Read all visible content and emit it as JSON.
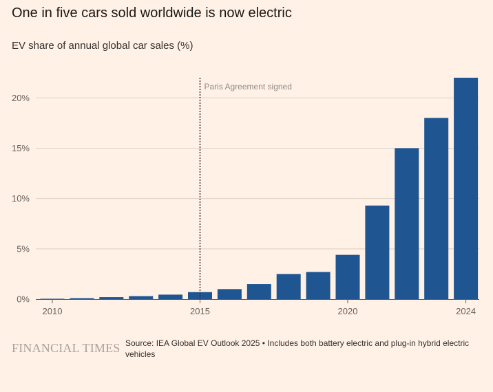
{
  "title": "One in five cars sold worldwide is now electric",
  "subtitle": "EV share of annual global car sales (%)",
  "brand": "FINANCIAL TIMES",
  "source": "Source: IEA Global EV Outlook 2025 • Includes both battery electric and plug-in hybrid electric vehicles",
  "colors": {
    "background": "#fff1e5",
    "bar": "#1f5591",
    "grid": "#d9cfc6",
    "annotation_line": "#33302e"
  },
  "chart_data": {
    "type": "bar",
    "categories": [
      "2010",
      "2011",
      "2012",
      "2013",
      "2014",
      "2015",
      "2016",
      "2017",
      "2018",
      "2019",
      "2020",
      "2021",
      "2022",
      "2023",
      "2024"
    ],
    "values": [
      0.01,
      0.1,
      0.2,
      0.3,
      0.45,
      0.7,
      1.0,
      1.5,
      2.5,
      2.7,
      4.4,
      9.3,
      15.0,
      18.0,
      22.0
    ],
    "ylim": [
      0,
      22
    ],
    "yticks": [
      0,
      5,
      10,
      15,
      20
    ],
    "ytick_labels": [
      "0%",
      "5%",
      "10%",
      "15%",
      "20%"
    ],
    "xtick_years": [
      "2010",
      "2015",
      "2020",
      "2024"
    ],
    "annotation": {
      "x": "2015",
      "text": "Paris Agreement signed"
    },
    "xlabel": "",
    "ylabel": ""
  }
}
